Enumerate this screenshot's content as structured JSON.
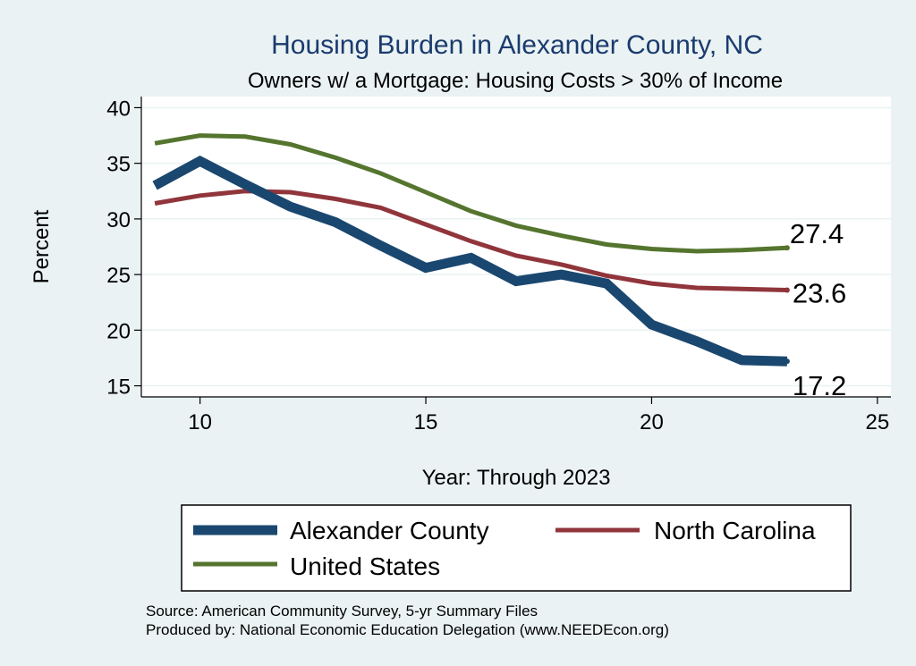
{
  "chart_data": {
    "type": "line",
    "title": "Housing Burden in Alexander County, NC",
    "subtitle": "Owners w/ a Mortgage: Housing Costs > 30% of Income",
    "xlabel": "Year: Through 2023",
    "ylabel": "Percent",
    "xlim": [
      8.7,
      25.3
    ],
    "ylim": [
      14,
      41
    ],
    "xticks": [
      10,
      15,
      20,
      25
    ],
    "yticks": [
      15,
      20,
      25,
      30,
      35,
      40
    ],
    "grid": true,
    "legend_position": "bottom",
    "series": [
      {
        "name": "Alexander County",
        "color": "#1a476f",
        "x": [
          9,
          10,
          11,
          12,
          13,
          14,
          15,
          16,
          17,
          18,
          19,
          20,
          21,
          22,
          23
        ],
        "values": [
          33.0,
          35.2,
          33.1,
          31.1,
          29.7,
          27.6,
          25.6,
          26.5,
          24.4,
          25.0,
          24.2,
          20.5,
          19.0,
          17.3,
          17.2
        ],
        "end_label": "17.2"
      },
      {
        "name": "North Carolina",
        "color": "#90353b",
        "x": [
          9,
          10,
          11,
          12,
          13,
          14,
          15,
          16,
          17,
          18,
          19,
          20,
          21,
          22,
          23
        ],
        "values": [
          31.4,
          32.1,
          32.5,
          32.4,
          31.8,
          31.0,
          29.5,
          28.0,
          26.7,
          25.9,
          24.9,
          24.2,
          23.8,
          23.7,
          23.6
        ],
        "end_label": "23.6"
      },
      {
        "name": "United States",
        "color": "#55752f",
        "x": [
          9,
          10,
          11,
          12,
          13,
          14,
          15,
          16,
          17,
          18,
          19,
          20,
          21,
          22,
          23
        ],
        "values": [
          36.8,
          37.5,
          37.4,
          36.7,
          35.5,
          34.1,
          32.4,
          30.7,
          29.4,
          28.5,
          27.7,
          27.3,
          27.1,
          27.2,
          27.4
        ],
        "end_label": "27.4"
      }
    ]
  },
  "notes": {
    "source": "Source: American Community Survey, 5-yr Summary Files",
    "produced_by": "Produced by: National Economic Education Delegation (www.NEEDEcon.org)"
  }
}
